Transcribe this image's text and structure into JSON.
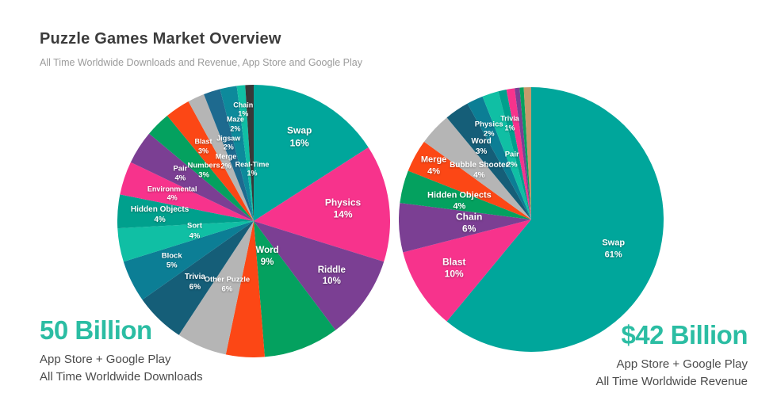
{
  "header": {
    "title": "Puzzle Games Market Overview",
    "subtitle": "All Time Worldwide Downloads and Revenue, App Store and Google Play"
  },
  "colors": {
    "accent_teal": "#2bbda3",
    "title_text": "#3c3c3c",
    "subtitle_text": "#9b9b9b",
    "caption_text": "#4b4b4b",
    "label_text": "#ffffff"
  },
  "chart_data": [
    {
      "type": "pie",
      "name": "downloads",
      "start_angle": "top",
      "direction": "clockwise",
      "labels_position": "inside",
      "total_label": "50 Billion",
      "caption_lines": [
        "App Store + Google Play",
        "All Time Worldwide Downloads"
      ],
      "slices": [
        {
          "label": "Swap",
          "pct": 16,
          "pct_label": "16%",
          "color": "#00a69b",
          "lr": 0.7,
          "fs": 12
        },
        {
          "label": "Physics",
          "pct": 14,
          "pct_label": "14%",
          "color": "#f7338c",
          "lr": 0.66,
          "fs": 12
        },
        {
          "label": "Riddle",
          "pct": 10,
          "pct_label": "10%",
          "color": "#7b3f93",
          "lr": 0.7,
          "fs": 11.5
        },
        {
          "label": "Word",
          "pct": 9,
          "pct_label": "9%",
          "color": "#04a15f",
          "lr": 0.28,
          "fs": 11.5
        },
        {
          "label": "",
          "pct": 4.6,
          "pct_label": "",
          "color": "#fc4715",
          "lr": 0.5,
          "fs": 9
        },
        {
          "label": "Other Puzzle",
          "pct": 6,
          "pct_label": "6%",
          "color": "#b5b5b5",
          "lr": 0.51,
          "fs": 9.5
        },
        {
          "label": "Trivia",
          "pct": 6,
          "pct_label": "6%",
          "color": "#155e78",
          "lr": 0.62,
          "fs": 10
        },
        {
          "label": "Block",
          "pct": 5,
          "pct_label": "5%",
          "color": "#0c7e95",
          "lr": 0.67,
          "fs": 9.5
        },
        {
          "label": "Sort",
          "pct": 4,
          "pct_label": "4%",
          "color": "#10bfa4",
          "lr": 0.44,
          "fs": 9.5
        },
        {
          "label": "Hidden Objects",
          "pct": 4,
          "pct_label": "4%",
          "color": "#00a08d",
          "lr": 0.69,
          "fs": 10
        },
        {
          "label": "Environmental",
          "pct": 4,
          "pct_label": "4%",
          "color": "#f7338c",
          "lr": 0.63,
          "fs": 9
        },
        {
          "label": "Pair",
          "pct": 4,
          "pct_label": "4%",
          "color": "#7b3f93",
          "lr": 0.64,
          "fs": 9.5
        },
        {
          "label": "Numbers",
          "pct": 3,
          "pct_label": "3%",
          "color": "#04a15f",
          "lr": 0.52,
          "fs": 9.5
        },
        {
          "label": "Blast",
          "pct": 3,
          "pct_label": "3%",
          "color": "#fc4715",
          "lr": 0.66,
          "fs": 9
        },
        {
          "label": "Merge",
          "pct": 2,
          "pct_label": "2%",
          "color": "#b5b5b5",
          "lr": 0.48,
          "fs": 9
        },
        {
          "label": "Jigsaw",
          "pct": 2,
          "pct_label": "2%",
          "color": "#1e6a8f",
          "lr": 0.6,
          "fs": 9
        },
        {
          "label": "Maze",
          "pct": 2,
          "pct_label": "2%",
          "color": "#0d8a9b",
          "lr": 0.72,
          "fs": 9
        },
        {
          "label": "Chain",
          "pct": 1,
          "pct_label": "1%",
          "color": "#10bfa4",
          "lr": 0.82,
          "fs": 9
        },
        {
          "label": "Real-Time",
          "pct": 1,
          "pct_label": "1%",
          "color": "#383838",
          "lr": 0.38,
          "fs": 9
        }
      ]
    },
    {
      "type": "pie",
      "name": "revenue",
      "start_angle": "top",
      "direction": "clockwise",
      "labels_position": "inside",
      "total_label": "$42 Billion",
      "caption_lines": [
        "App Store + Google Play",
        "All Time Worldwide Revenue"
      ],
      "slices": [
        {
          "label": "Swap",
          "pct": 61,
          "pct_label": "61%",
          "color": "#00a69b",
          "lr": 0.66,
          "fs": 11
        },
        {
          "label": "Blast",
          "pct": 10,
          "pct_label": "10%",
          "color": "#f7338c",
          "lr": 0.69,
          "fs": 12
        },
        {
          "label": "Chain",
          "pct": 6,
          "pct_label": "6%",
          "color": "#7b3f93",
          "lr": 0.47,
          "fs": 12
        },
        {
          "label": "Hidden Objects",
          "pct": 4,
          "pct_label": "4%",
          "color": "#04a15f",
          "lr": 0.56,
          "fs": 11
        },
        {
          "label": "Merge",
          "pct": 4,
          "pct_label": "4%",
          "color": "#fc4715",
          "lr": 0.84,
          "fs": 11
        },
        {
          "label": "Bubble Shooter",
          "pct": 4,
          "pct_label": "4%",
          "color": "#b5b5b5",
          "lr": 0.54,
          "fs": 10
        },
        {
          "label": "Word",
          "pct": 3,
          "pct_label": "3%",
          "color": "#155e78",
          "lr": 0.67,
          "fs": 10
        },
        {
          "label": "Physics",
          "pct": 2,
          "pct_label": "2%",
          "color": "#0c7e95",
          "lr": 0.75,
          "fs": 9.5
        },
        {
          "label": "Pair",
          "pct": 2,
          "pct_label": "2%",
          "color": "#10bfa4",
          "lr": 0.47,
          "fs": 9.5
        },
        {
          "label": "Trivia",
          "pct": 1,
          "pct_label": "1%",
          "color": "#00a08d",
          "lr": 0.74,
          "fs": 9
        },
        {
          "label": "",
          "pct": 1.0,
          "pct_label": "",
          "color": "#f7338c",
          "lr": 0.5,
          "fs": 9
        },
        {
          "label": "",
          "pct": 0.6,
          "pct_label": "",
          "color": "#7b3f93",
          "lr": 0.5,
          "fs": 9
        },
        {
          "label": "",
          "pct": 0.5,
          "pct_label": "",
          "color": "#04a15f",
          "lr": 0.5,
          "fs": 9
        },
        {
          "label": "",
          "pct": 0.9,
          "pct_label": "",
          "color": "#c49a6c",
          "lr": 0.5,
          "fs": 9
        }
      ]
    }
  ]
}
